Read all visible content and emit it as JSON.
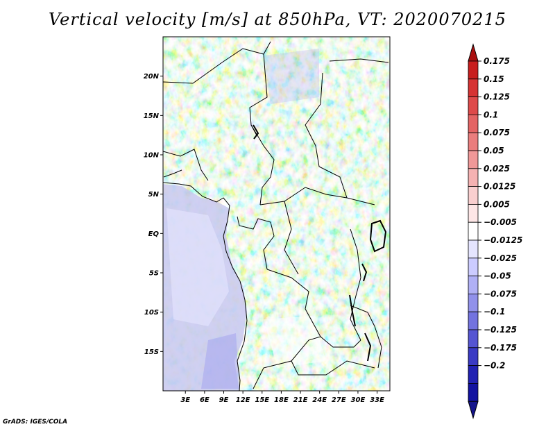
{
  "chart_data": {
    "type": "heatmap",
    "title": "Vertical velocity [m/s] at 850hPa, VT: 2020070215",
    "variable": "Vertical velocity",
    "units": "m/s",
    "level": "850hPa",
    "valid_time": "2020070215",
    "lon_range": [
      -0.5,
      35
    ],
    "lat_range": [
      -20,
      25
    ],
    "x_ticks": [
      {
        "value": 3,
        "label": "3E"
      },
      {
        "value": 6,
        "label": "6E"
      },
      {
        "value": 9,
        "label": "9E"
      },
      {
        "value": 12,
        "label": "12E"
      },
      {
        "value": 15,
        "label": "15E"
      },
      {
        "value": 18,
        "label": "18E"
      },
      {
        "value": 21,
        "label": "21E"
      },
      {
        "value": 24,
        "label": "24E"
      },
      {
        "value": 27,
        "label": "27E"
      },
      {
        "value": 30,
        "label": "30E"
      },
      {
        "value": 33,
        "label": "33E"
      }
    ],
    "y_ticks": [
      {
        "value": 20,
        "label": "20N"
      },
      {
        "value": 15,
        "label": "15N"
      },
      {
        "value": 10,
        "label": "10N"
      },
      {
        "value": 5,
        "label": "5N"
      },
      {
        "value": 0,
        "label": "EQ"
      },
      {
        "value": -5,
        "label": "5S"
      },
      {
        "value": -10,
        "label": "10S"
      },
      {
        "value": -15,
        "label": "15S"
      }
    ],
    "colorbar_levels": [
      "0.175",
      "0.15",
      "0.125",
      "0.1",
      "0.075",
      "0.05",
      "0.025",
      "0.0125",
      "0.005",
      "-0.005",
      "-0.0125",
      "-0.025",
      "-0.05",
      "-0.075",
      "-0.1",
      "-0.125",
      "-0.175",
      "-0.2"
    ],
    "colorbar_colors": [
      "#c81e1e",
      "#d63333",
      "#de4a4a",
      "#e46464",
      "#ea7d7d",
      "#f09898",
      "#f5b2b2",
      "#f9cfcf",
      "#fde6e6",
      "#ffffff",
      "#e5e5ff",
      "#ccccff",
      "#b0b0f5",
      "#9191ea",
      "#7373df",
      "#5555d2",
      "#3a3ac4",
      "#2121b2",
      "#1212a0"
    ],
    "colorbar_top_color": "#aa1010",
    "colorbar_bottom_color": "#14148c"
  },
  "credit": "GrADS: IGES/COLA"
}
